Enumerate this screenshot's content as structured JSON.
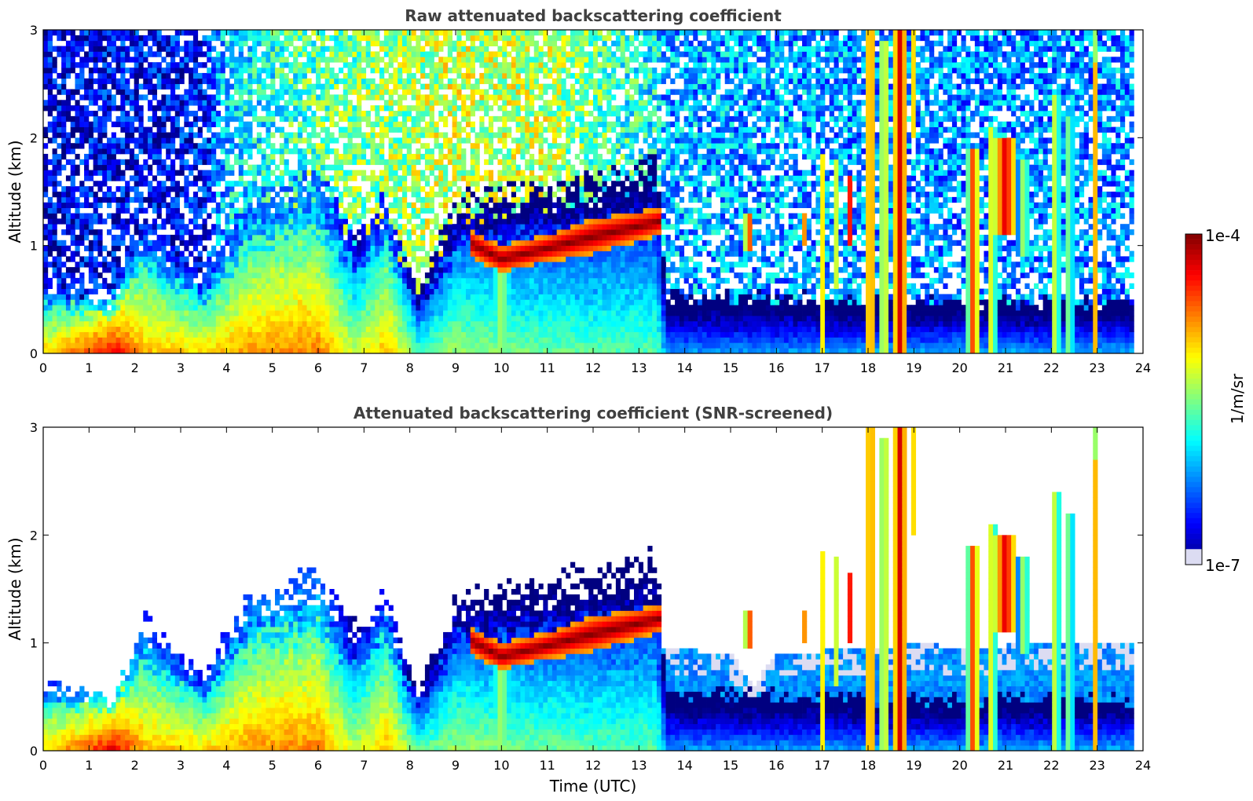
{
  "colors": {
    "jet_stops": [
      "#000080",
      "#0000ff",
      "#0080ff",
      "#00ffff",
      "#80ff80",
      "#ffff00",
      "#ff8000",
      "#ff0000",
      "#800000"
    ],
    "faint_lavender": "#dcdcf2",
    "title_text": "#404040",
    "axis": "#000000"
  },
  "colorbar": {
    "max_label": "1e-4",
    "min_label": "1e-7",
    "unit_label": "1/m/sr",
    "scale": "log"
  },
  "xlabel": "Time (UTC)",
  "chart_data": [
    {
      "type": "heatmap",
      "title": "Raw attenuated backscattering coefficient",
      "xlabel": "",
      "ylabel": "Altitude (km)",
      "xlim": [
        0,
        24
      ],
      "ylim": [
        0,
        3
      ],
      "xticks": [
        "0",
        "1",
        "2",
        "3",
        "4",
        "5",
        "6",
        "7",
        "8",
        "9",
        "10",
        "11",
        "12",
        "13",
        "14",
        "15",
        "16",
        "17",
        "18",
        "19",
        "20",
        "21",
        "22",
        "23",
        "24"
      ],
      "yticks": [
        "0",
        "1",
        "2",
        "3"
      ],
      "color_scale": "log",
      "clim": [
        1e-07,
        0.0001
      ],
      "data_end_time": 23.8,
      "upper_noise_log10": [
        {
          "t": 0,
          "v": -6.7
        },
        {
          "t": 3.5,
          "v": -6.6
        },
        {
          "t": 4,
          "v": -6.0
        },
        {
          "t": 6,
          "v": -5.6
        },
        {
          "t": 9,
          "v": -5.3
        },
        {
          "t": 11,
          "v": -5.35
        },
        {
          "t": 13.4,
          "v": -5.9
        },
        {
          "t": 13.5,
          "v": -6.1
        },
        {
          "t": 20,
          "v": -6.2
        },
        {
          "t": 23.8,
          "v": -6.2
        }
      ],
      "boundary_layer": [
        {
          "t": 0,
          "top": 0.45,
          "log10_max": -5.0
        },
        {
          "t": 1,
          "top": 0.4,
          "log10_max": -4.6
        },
        {
          "t": 1.5,
          "top": 0.35,
          "log10_max": -4.3
        },
        {
          "t": 2.2,
          "top": 0.85,
          "log10_max": -4.9
        },
        {
          "t": 3.5,
          "top": 0.5,
          "log10_max": -5.0
        },
        {
          "t": 4.5,
          "top": 1.0,
          "log10_max": -4.8
        },
        {
          "t": 6,
          "top": 1.15,
          "log10_max": -4.75
        },
        {
          "t": 6.8,
          "top": 0.8,
          "log10_max": -5.3
        },
        {
          "t": 7.5,
          "top": 1.0,
          "log10_max": -4.9
        },
        {
          "t": 8.2,
          "top": 0.4,
          "log10_max": -5.6
        },
        {
          "t": 9,
          "top": 1.0,
          "log10_max": -5.4
        },
        {
          "t": 10,
          "top": 1.05,
          "log10_max": -5.5
        },
        {
          "t": 12,
          "top": 1.15,
          "log10_max": -5.6
        },
        {
          "t": 13.4,
          "top": 1.25,
          "log10_max": -5.6
        },
        {
          "t": 13.6,
          "top": 0.4,
          "log10_max": -6.15
        },
        {
          "t": 20,
          "top": 0.35,
          "log10_max": -6.1
        },
        {
          "t": 23.8,
          "top": 0.35,
          "log10_max": -6.1
        }
      ],
      "aerosol_layer": {
        "t_start": 9.3,
        "t_end": 13.45,
        "base": [
          {
            "t": 9.3,
            "v": 0.9
          },
          {
            "t": 10,
            "v": 0.75
          },
          {
            "t": 11,
            "v": 0.85
          },
          {
            "t": 12,
            "v": 0.92
          },
          {
            "t": 13.45,
            "v": 1.1
          }
        ],
        "top": [
          {
            "t": 9.3,
            "v": 1.15
          },
          {
            "t": 10,
            "v": 1.0
          },
          {
            "t": 11,
            "v": 1.1
          },
          {
            "t": 12,
            "v": 1.25
          },
          {
            "t": 13.45,
            "v": 1.35
          }
        ],
        "log10_max": -4.0
      },
      "plumes": [
        {
          "t": 10.0,
          "w": 0.3,
          "base": 0.0,
          "top": 1.0,
          "log10": -5.3
        },
        {
          "t": 15.4,
          "w": 0.1,
          "base": 0.95,
          "top": 1.3,
          "log10": -4.4
        },
        {
          "t": 16.6,
          "w": 0.06,
          "base": 1.0,
          "top": 1.3,
          "log10": -4.6
        },
        {
          "t": 17.0,
          "w": 0.09,
          "base": 0.0,
          "top": 1.85,
          "log10": -5.0
        },
        {
          "t": 17.3,
          "w": 0.07,
          "base": 0.6,
          "top": 1.8,
          "log10": -5.2
        },
        {
          "t": 17.6,
          "w": 0.06,
          "base": 1.0,
          "top": 1.65,
          "log10": -4.4
        },
        {
          "t": 18.05,
          "w": 0.13,
          "base": 0.0,
          "top": 3.0,
          "log10": -4.5
        },
        {
          "t": 18.35,
          "w": 0.09,
          "base": 0.0,
          "top": 2.9,
          "log10": -4.7
        },
        {
          "t": 18.7,
          "w": 0.16,
          "base": 0.0,
          "top": 3.0,
          "log10": -4.2
        },
        {
          "t": 19.0,
          "w": 0.05,
          "base": 2.0,
          "top": 3.0,
          "log10": -4.8
        },
        {
          "t": 20.3,
          "w": 0.12,
          "base": 0.0,
          "top": 1.9,
          "log10": -4.4
        },
        {
          "t": 20.7,
          "w": 0.12,
          "base": 0.0,
          "top": 2.1,
          "log10": -5.0
        },
        {
          "t": 21.0,
          "w": 0.25,
          "base": 1.1,
          "top": 2.0,
          "log10": -4.2
        },
        {
          "t": 21.4,
          "w": 0.15,
          "base": 0.9,
          "top": 1.8,
          "log10": -5.2
        },
        {
          "t": 22.1,
          "w": 0.07,
          "base": 0.0,
          "top": 2.4,
          "log10": -4.7
        },
        {
          "t": 22.4,
          "w": 0.07,
          "base": 0.0,
          "top": 2.2,
          "log10": -4.9
        },
        {
          "t": 22.95,
          "w": 0.07,
          "base": 0.0,
          "top": 2.7,
          "log10": -4.8
        },
        {
          "t": 23.0,
          "w": 0.05,
          "base": 2.6,
          "top": 3.0,
          "log10": -4.4
        }
      ]
    },
    {
      "type": "heatmap",
      "title": "Attenuated backscattering coefficient (SNR-screened)",
      "xlabel": "Time (UTC)",
      "ylabel": "Altitude (km)",
      "xlim": [
        0,
        24
      ],
      "ylim": [
        0,
        3
      ],
      "xticks": [
        "0",
        "1",
        "2",
        "3",
        "4",
        "5",
        "6",
        "7",
        "8",
        "9",
        "10",
        "11",
        "12",
        "13",
        "14",
        "15",
        "16",
        "17",
        "18",
        "19",
        "20",
        "21",
        "22",
        "23",
        "24"
      ],
      "yticks": [
        "0",
        "1",
        "2",
        "3"
      ],
      "color_scale": "log",
      "clim": [
        1e-07,
        0.0001
      ],
      "data_end_time": 23.8,
      "screened": true,
      "clear_air_top": [
        {
          "t": 13.5,
          "v": 0.95
        },
        {
          "t": 15,
          "v": 0.9
        },
        {
          "t": 15.5,
          "v": 0.6
        },
        {
          "t": 16,
          "v": 0.9
        },
        {
          "t": 18,
          "v": 0.95
        },
        {
          "t": 19,
          "v": 1.0
        },
        {
          "t": 20,
          "v": 0.95
        },
        {
          "t": 22,
          "v": 1.0
        },
        {
          "t": 23.8,
          "v": 1.0
        }
      ]
    }
  ]
}
